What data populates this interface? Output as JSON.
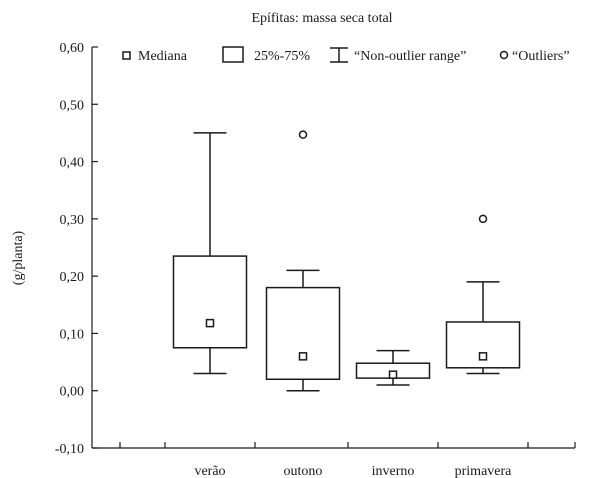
{
  "chart_data": {
    "type": "box",
    "title": "Epífitas: massa seca total",
    "ylabel": "(g/planta)",
    "xlabel": "",
    "ylim": [
      -0.1,
      0.6
    ],
    "yticks": [
      -0.1,
      0.0,
      0.1,
      0.2,
      0.3,
      0.4,
      0.5,
      0.6
    ],
    "ytick_labels": [
      "-0,10",
      "0,00",
      "0,10",
      "0,20",
      "0,30",
      "0,40",
      "0,50",
      "0,60"
    ],
    "categories": [
      "verão",
      "outono",
      "inverno",
      "primavera"
    ],
    "legend": {
      "position": "top",
      "items": [
        {
          "symbol": "median-square",
          "label": "Mediana"
        },
        {
          "symbol": "box",
          "label": "25%-75%"
        },
        {
          "symbol": "whisker",
          "label": "“Non-outlier range”"
        },
        {
          "symbol": "outlier-circle",
          "label": "“Outliers”"
        }
      ]
    },
    "series": [
      {
        "category": "verão",
        "whisker_low": 0.03,
        "q1": 0.075,
        "median": 0.118,
        "q3": 0.235,
        "whisker_high": 0.45,
        "outliers": []
      },
      {
        "category": "outono",
        "whisker_low": 0.0,
        "q1": 0.02,
        "median": 0.06,
        "q3": 0.18,
        "whisker_high": 0.21,
        "outliers": [
          0.447
        ]
      },
      {
        "category": "inverno",
        "whisker_low": 0.01,
        "q1": 0.022,
        "median": 0.028,
        "q3": 0.048,
        "whisker_high": 0.07,
        "outliers": []
      },
      {
        "category": "primavera",
        "whisker_low": 0.03,
        "q1": 0.04,
        "median": 0.06,
        "q3": 0.12,
        "whisker_high": 0.19,
        "outliers": [
          0.3
        ]
      }
    ],
    "colors": {
      "line": "#1a1a1a",
      "background": "#ffffff"
    }
  }
}
